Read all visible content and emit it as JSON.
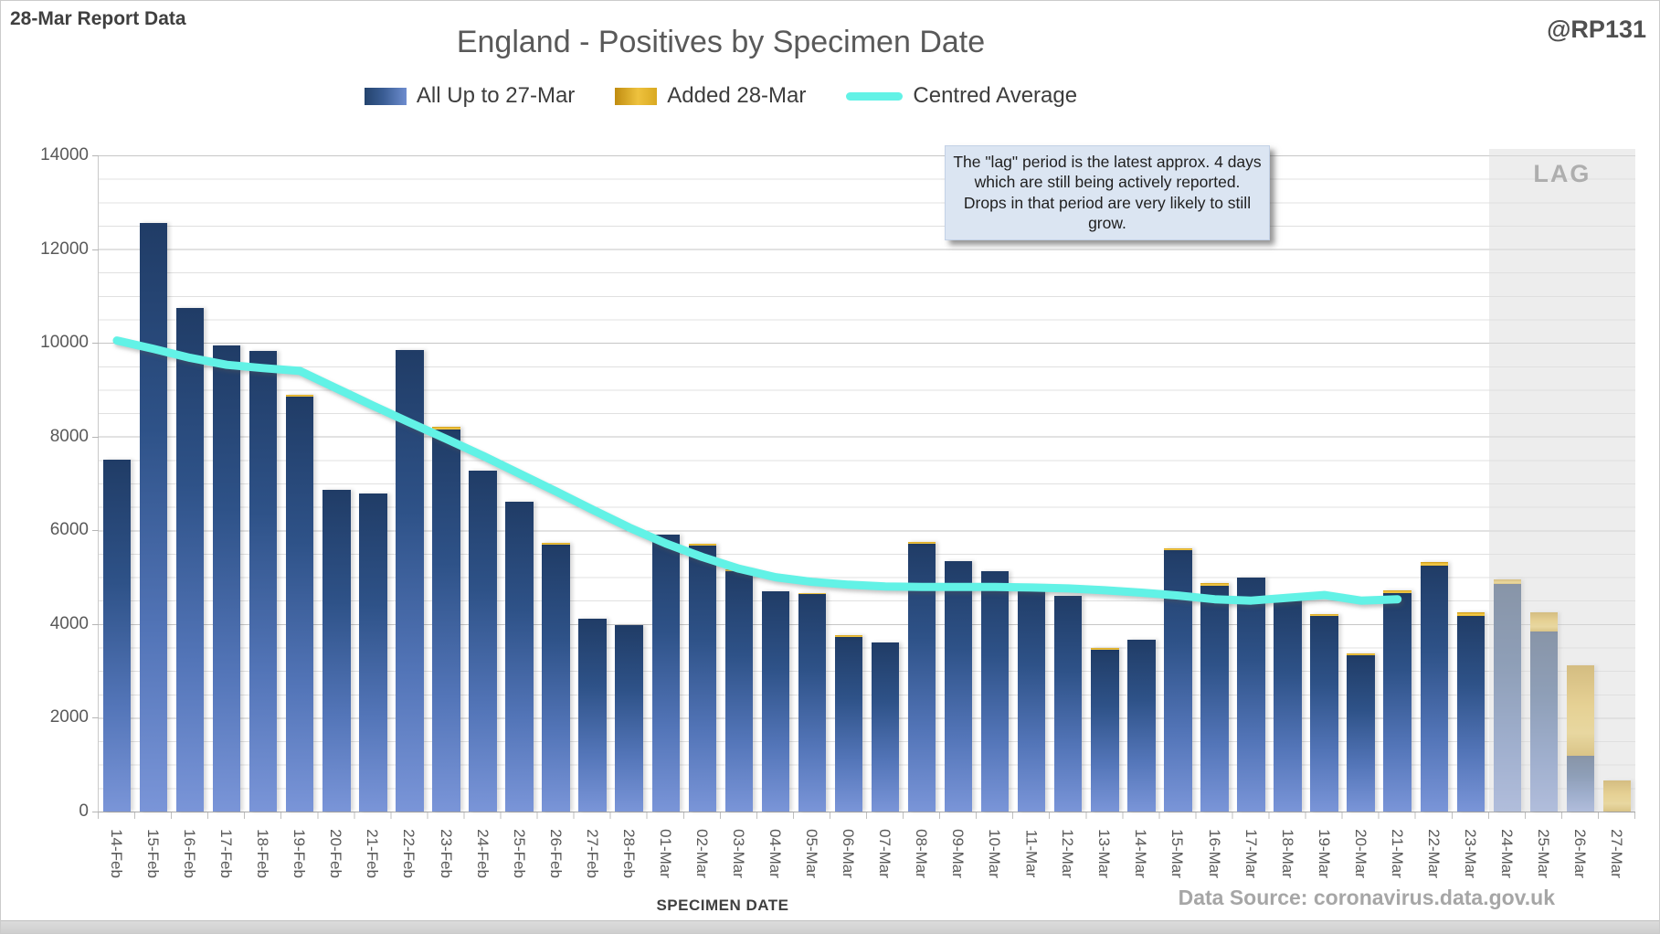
{
  "header": {
    "report_label": "28-Mar Report Data",
    "handle": "@RP131",
    "title": "England - Positives by Specimen Date"
  },
  "legend": {
    "items": [
      {
        "label": "All Up to 27-Mar",
        "swatch": "blue-bar-swatch"
      },
      {
        "label": "Added 28-Mar",
        "swatch": "gold-bar-swatch"
      },
      {
        "label": "Centred Average",
        "swatch": "cyan-line-swatch"
      }
    ]
  },
  "annotation": {
    "text": "The \"lag\" period is the latest  approx. 4 days which are still being actively reported.  Drops in that period are very likely to still grow."
  },
  "lag_region": {
    "label": "LAG",
    "start_category": "24-Mar",
    "end_category": "27-Mar"
  },
  "axis": {
    "x_title": "SPECIMEN DATE",
    "y_ticks": [
      "14000",
      "12000",
      "10000",
      "8000",
      "6000",
      "4000",
      "2000",
      "0"
    ],
    "y_max": 14000
  },
  "footer": {
    "source": "Data Source: coronavirus.data.gov.uk"
  },
  "colors": {
    "bar_blue_top": "#203c66",
    "bar_blue_bottom": "#7a95d8",
    "bar_gold": "#efc13b",
    "centred_average_line": "#62f2e6",
    "lag_band": "#dedede",
    "annotation_bg": "#dbe5f2",
    "text_gray": "#595959",
    "source_gray": "#a6a6a6"
  },
  "chart_data": {
    "type": "bar",
    "stacked": true,
    "title": "England - Positives by Specimen Date",
    "xlabel": "SPECIMEN DATE",
    "ylabel": "",
    "ylim": [
      0,
      14000
    ],
    "y_minor_step": 500,
    "y_major_step": 2000,
    "grid": true,
    "legend_position": "top",
    "categories": [
      "14-Feb",
      "15-Feb",
      "16-Feb",
      "17-Feb",
      "18-Feb",
      "19-Feb",
      "20-Feb",
      "21-Feb",
      "22-Feb",
      "23-Feb",
      "24-Feb",
      "25-Feb",
      "26-Feb",
      "27-Feb",
      "28-Feb",
      "01-Mar",
      "02-Mar",
      "03-Mar",
      "04-Mar",
      "05-Mar",
      "06-Mar",
      "07-Mar",
      "08-Mar",
      "09-Mar",
      "10-Mar",
      "11-Mar",
      "12-Mar",
      "13-Mar",
      "14-Mar",
      "15-Mar",
      "16-Mar",
      "17-Mar",
      "18-Mar",
      "19-Mar",
      "20-Mar",
      "21-Mar",
      "22-Mar",
      "23-Mar",
      "24-Mar",
      "25-Mar",
      "26-Mar",
      "27-Mar"
    ],
    "series": [
      {
        "name": "All Up to 27-Mar",
        "type": "bar",
        "values": [
          7500,
          12550,
          10750,
          9950,
          9830,
          8860,
          6860,
          6780,
          9850,
          8150,
          7280,
          6620,
          5690,
          4110,
          3980,
          5910,
          5670,
          5120,
          4690,
          4640,
          3720,
          3610,
          5720,
          5340,
          5130,
          4820,
          4610,
          3450,
          3670,
          5570,
          4820,
          5000,
          4520,
          4170,
          3340,
          4660,
          5240,
          4180,
          4850,
          3840,
          1190,
          0
        ]
      },
      {
        "name": "Added 28-Mar",
        "type": "bar",
        "values": [
          0,
          0,
          0,
          0,
          0,
          30,
          0,
          0,
          0,
          50,
          0,
          0,
          40,
          0,
          0,
          0,
          40,
          40,
          0,
          30,
          40,
          0,
          40,
          0,
          0,
          0,
          0,
          40,
          0,
          50,
          60,
          0,
          20,
          50,
          40,
          60,
          80,
          80,
          100,
          410,
          1930,
          660
        ]
      },
      {
        "name": "Centred Average",
        "type": "line",
        "values": [
          10050,
          9870,
          9680,
          9530,
          9460,
          9400,
          9030,
          8660,
          8300,
          7950,
          7590,
          7210,
          6830,
          6440,
          6060,
          5720,
          5430,
          5180,
          5000,
          4900,
          4840,
          4800,
          4790,
          4790,
          4790,
          4780,
          4760,
          4720,
          4670,
          4610,
          4530,
          4500,
          4560,
          4620,
          4500,
          4530,
          null,
          null,
          null,
          null,
          null,
          null
        ]
      }
    ]
  }
}
